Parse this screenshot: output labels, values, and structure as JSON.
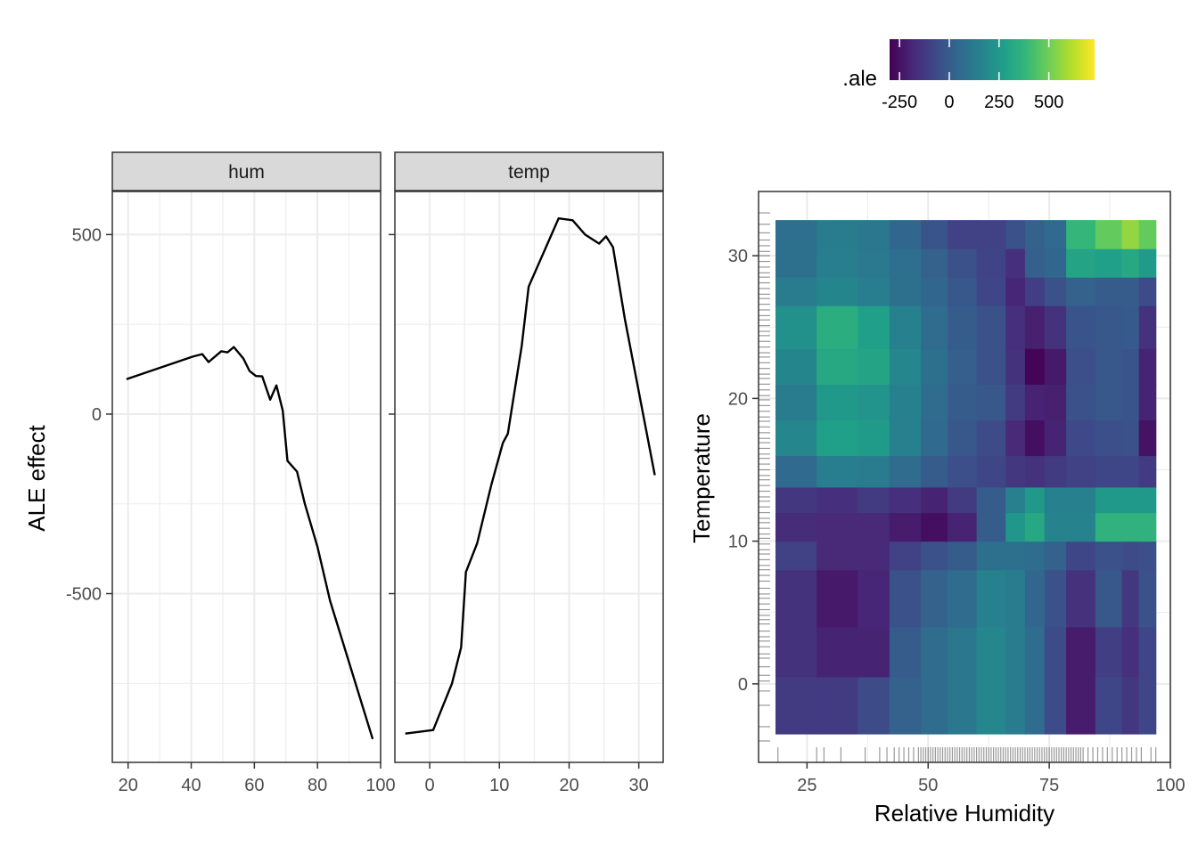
{
  "colors": {
    "line": "#000000",
    "grid": "#ebebeb",
    "panel_border": "#333333",
    "strip_fill": "#d9d9d9",
    "viridis": [
      "#440154",
      "#482878",
      "#3e4989",
      "#31688e",
      "#26828e",
      "#1f9e89",
      "#35b779",
      "#6ece58",
      "#b5de2b",
      "#fde725"
    ]
  },
  "chart_data": [
    {
      "type": "line",
      "facet": "hum",
      "ylabel": "ALE effect",
      "xlim": [
        15,
        100
      ],
      "ylim": [
        -970,
        620
      ],
      "x_ticks": [
        20,
        40,
        60,
        80,
        100
      ],
      "x_tick_labels": [
        "20",
        "40",
        "60",
        "80",
        "100"
      ],
      "y_ticks": [
        -500,
        0,
        500
      ],
      "y_tick_labels": [
        "-500",
        "0",
        "500"
      ],
      "points": [
        [
          19.5,
          97
        ],
        [
          40.5,
          160
        ],
        [
          43.5,
          167
        ],
        [
          45.5,
          145
        ],
        [
          49.5,
          175
        ],
        [
          51.5,
          172
        ],
        [
          53.5,
          187
        ],
        [
          56.5,
          155
        ],
        [
          58.5,
          120
        ],
        [
          60.5,
          106
        ],
        [
          62.5,
          105
        ],
        [
          65,
          40
        ],
        [
          67,
          80
        ],
        [
          69,
          10
        ],
        [
          70.5,
          -130
        ],
        [
          73.5,
          -160
        ],
        [
          76,
          -250
        ],
        [
          80,
          -370
        ],
        [
          84,
          -520
        ],
        [
          97.5,
          -905
        ]
      ]
    },
    {
      "type": "line",
      "facet": "temp",
      "xlim": [
        -5,
        33.5
      ],
      "ylim": [
        -970,
        620
      ],
      "x_ticks": [
        0,
        10,
        20,
        30
      ],
      "x_tick_labels": [
        "0",
        "10",
        "20",
        "30"
      ],
      "y_ticks": [
        -500,
        0,
        500
      ],
      "points": [
        [
          -3.5,
          -890
        ],
        [
          0.5,
          -880
        ],
        [
          3.2,
          -750
        ],
        [
          4.5,
          -650
        ],
        [
          5.2,
          -440
        ],
        [
          6.8,
          -360
        ],
        [
          8.8,
          -200
        ],
        [
          10.5,
          -80
        ],
        [
          11.2,
          -55
        ],
        [
          13.2,
          190
        ],
        [
          14.2,
          355
        ],
        [
          18.5,
          545
        ],
        [
          20.5,
          540
        ],
        [
          22.3,
          500
        ],
        [
          24.3,
          475
        ],
        [
          25.3,
          495
        ],
        [
          26.3,
          465
        ],
        [
          28,
          265
        ],
        [
          32.3,
          -170
        ]
      ]
    },
    {
      "type": "heatmap",
      "xlabel": "Relative Humidity",
      "ylabel": "Temperature",
      "xlim": [
        15,
        100
      ],
      "ylim": [
        -5.5,
        34.5
      ],
      "x_ticks": [
        25,
        50,
        75,
        100
      ],
      "x_tick_labels": [
        "25",
        "50",
        "75",
        "100"
      ],
      "y_ticks": [
        0,
        10,
        20,
        30
      ],
      "y_tick_labels": [
        "0",
        "10",
        "20",
        "30"
      ],
      "x_edges": [
        18.5,
        27,
        35.5,
        42,
        48.5,
        54,
        60,
        66,
        70,
        74,
        78.5,
        84.5,
        90,
        93.5,
        97
      ],
      "y_edges": [
        -3.5,
        0.5,
        4,
        8,
        10,
        12,
        13.8,
        16,
        18.5,
        21,
        23.5,
        26.5,
        28.5,
        30.5,
        32.5
      ],
      "values": [
        [
          -120,
          -120,
          -60,
          20,
          60,
          110,
          180,
          130,
          60,
          -60,
          -220,
          -80,
          -130,
          -80
        ],
        [
          -150,
          -200,
          -200,
          0,
          60,
          110,
          180,
          130,
          60,
          -60,
          -220,
          -110,
          -160,
          -80
        ],
        [
          -150,
          -230,
          -190,
          -40,
          20,
          60,
          150,
          130,
          40,
          -40,
          -150,
          -20,
          -130,
          -40
        ],
        [
          -100,
          -180,
          -180,
          -100,
          -40,
          0,
          80,
          80,
          60,
          20,
          -80,
          -40,
          -60,
          -50
        ],
        [
          -170,
          -180,
          -180,
          -220,
          -260,
          -200,
          0,
          240,
          320,
          160,
          160,
          360,
          360,
          360
        ],
        [
          -130,
          -160,
          -120,
          -160,
          -200,
          -120,
          0,
          150,
          250,
          150,
          150,
          250,
          250,
          250
        ],
        [
          50,
          140,
          130,
          60,
          0,
          -50,
          -80,
          -130,
          -150,
          -120,
          -100,
          -80,
          -80,
          -120
        ],
        [
          180,
          280,
          260,
          150,
          50,
          -20,
          -60,
          -180,
          -260,
          -200,
          -70,
          -50,
          -40,
          -250
        ],
        [
          130,
          250,
          230,
          150,
          60,
          0,
          -20,
          -120,
          -200,
          -210,
          -40,
          -20,
          -30,
          -200
        ],
        [
          170,
          320,
          300,
          180,
          80,
          10,
          -40,
          -150,
          -290,
          -230,
          -50,
          -20,
          -30,
          -200
        ],
        [
          220,
          340,
          280,
          150,
          60,
          0,
          -40,
          -160,
          -210,
          -150,
          -30,
          -20,
          -10,
          -150
        ],
        [
          130,
          170,
          140,
          80,
          40,
          -20,
          -80,
          -190,
          -110,
          -40,
          20,
          0,
          0,
          -60
        ],
        [
          80,
          140,
          120,
          70,
          20,
          -40,
          -90,
          -160,
          10,
          40,
          300,
          280,
          320,
          260
        ],
        [
          70,
          130,
          110,
          40,
          -30,
          -100,
          -100,
          -40,
          20,
          50,
          380,
          480,
          560,
          480
        ]
      ],
      "legend": {
        "title": ".ale",
        "position": "top",
        "domain": [
          -300,
          730
        ],
        "ticks": [
          -250,
          0,
          250,
          500
        ],
        "tick_labels": [
          "-250",
          "0",
          "250",
          "500"
        ]
      },
      "rug_x": [
        19,
        27,
        28.5,
        32,
        37,
        40,
        41.5,
        43,
        44,
        45,
        46,
        47,
        48,
        48.5,
        49,
        49.5,
        50,
        50.5,
        51,
        51.5,
        52,
        52.5,
        53,
        53.5,
        54,
        54.5,
        55,
        55.5,
        56,
        56.5,
        57,
        57.5,
        58,
        58.5,
        59,
        59.5,
        60,
        60.5,
        61,
        61.5,
        62,
        62.5,
        63,
        63.5,
        64,
        64.5,
        65,
        65.5,
        66,
        66.5,
        67,
        67.5,
        68,
        68.5,
        69,
        69.5,
        70,
        70.5,
        71,
        71.5,
        72,
        72.5,
        73,
        73.5,
        74,
        74.5,
        75,
        75.5,
        76,
        76.5,
        77,
        77.5,
        78,
        78.5,
        79,
        79.5,
        80,
        80.5,
        81,
        81.5,
        82,
        83,
        84,
        85,
        86,
        87,
        88,
        89,
        90,
        91,
        92,
        93,
        94,
        96,
        97
      ],
      "rug_y": [
        -4,
        -3,
        -1.5,
        -0.5,
        0.2,
        0.6,
        1.2,
        1.8,
        2.1,
        2.6,
        3,
        3.3,
        3.7,
        4.2,
        4.5,
        4.8,
        5.2,
        5.6,
        6,
        6.3,
        6.7,
        7.2,
        7.6,
        8,
        8.3,
        8.7,
        9.1,
        9.4,
        9.8,
        10.2,
        10.5,
        10.9,
        11.3,
        11.6,
        12,
        12.4,
        12.8,
        13.1,
        13.5,
        13.9,
        14.3,
        14.6,
        15,
        15.4,
        15.8,
        16.1,
        16.5,
        16.9,
        17.2,
        17.6,
        18,
        18.4,
        18.7,
        19.1,
        19.5,
        19.9,
        20.2,
        20.6,
        21,
        21.4,
        21.7,
        22.1,
        22.5,
        22.9,
        23.2,
        23.6,
        24,
        24.4,
        24.7,
        25.1,
        25.5,
        25.8,
        26.2,
        26.6,
        27,
        27.3,
        27.7,
        28.1,
        28.5,
        28.8,
        29.2,
        29.6,
        30,
        30.3,
        30.7,
        31.1,
        31.6,
        32.2,
        33
      ]
    }
  ]
}
